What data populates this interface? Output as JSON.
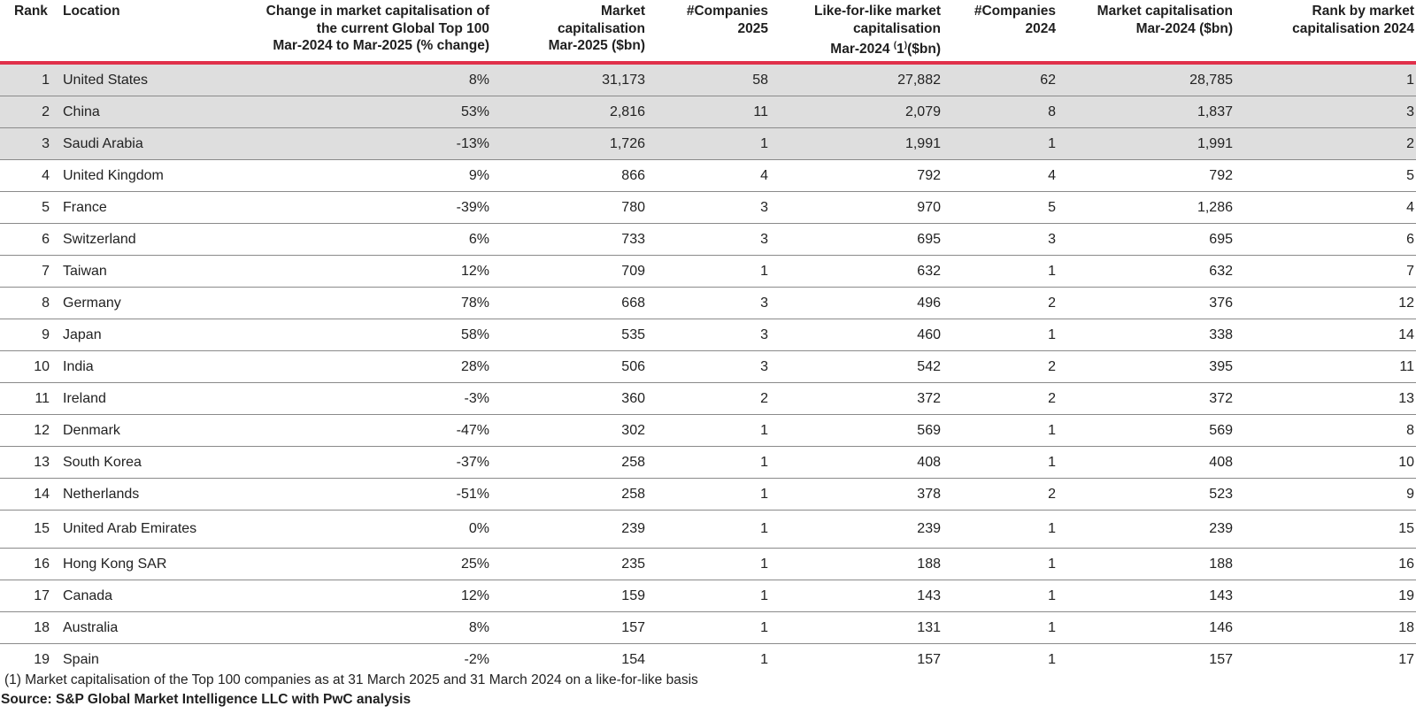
{
  "headers": {
    "rank": "Rank",
    "location": "Location",
    "change": [
      "Change in market capitalisation of",
      "the current Global Top 100",
      "Mar-2024 to Mar-2025 (% change)"
    ],
    "mc2025": [
      "Market",
      "capitalisation",
      "Mar-2025 ($bn)"
    ],
    "companies2025": [
      "#Companies",
      "2025"
    ],
    "lfl": [
      "Like-for-like market",
      "capitalisation"
    ],
    "lfl_line3_prefix": "Mar-2024 ",
    "lfl_sup": "(",
    "lfl_line3_mid": "1",
    "lfl_sup2": ")",
    "lfl_line3_suffix": "($bn)",
    "companies2024": [
      "#Companies",
      "2024"
    ],
    "mc2024": [
      "Market capitalisation",
      "Mar-2024 ($bn)"
    ],
    "rank2024": [
      "Rank by market",
      "capitalisation 2024"
    ]
  },
  "rows": [
    {
      "rank": "1",
      "location": "United States",
      "change": "8%",
      "mc2025": "31,173",
      "c2025": "58",
      "lfl": "27,882",
      "c2024": "62",
      "mc2024": "28,785",
      "rank2024": "1"
    },
    {
      "rank": "2",
      "location": "China",
      "change": "53%",
      "mc2025": "2,816",
      "c2025": "11",
      "lfl": "2,079",
      "c2024": "8",
      "mc2024": "1,837",
      "rank2024": "3"
    },
    {
      "rank": "3",
      "location": "Saudi Arabia",
      "change": "-13%",
      "mc2025": "1,726",
      "c2025": "1",
      "lfl": "1,991",
      "c2024": "1",
      "mc2024": "1,991",
      "rank2024": "2"
    },
    {
      "rank": "4",
      "location": "United Kingdom",
      "change": "9%",
      "mc2025": "866",
      "c2025": "4",
      "lfl": "792",
      "c2024": "4",
      "mc2024": "792",
      "rank2024": "5"
    },
    {
      "rank": "5",
      "location": "France",
      "change": "-39%",
      "mc2025": "780",
      "c2025": "3",
      "lfl": "970",
      "c2024": "5",
      "mc2024": "1,286",
      "rank2024": "4"
    },
    {
      "rank": "6",
      "location": "Switzerland",
      "change": "6%",
      "mc2025": "733",
      "c2025": "3",
      "lfl": "695",
      "c2024": "3",
      "mc2024": "695",
      "rank2024": "6"
    },
    {
      "rank": "7",
      "location": "Taiwan",
      "change": "12%",
      "mc2025": "709",
      "c2025": "1",
      "lfl": "632",
      "c2024": "1",
      "mc2024": "632",
      "rank2024": "7"
    },
    {
      "rank": "8",
      "location": "Germany",
      "change": "78%",
      "mc2025": "668",
      "c2025": "3",
      "lfl": "496",
      "c2024": "2",
      "mc2024": "376",
      "rank2024": "12"
    },
    {
      "rank": "9",
      "location": "Japan",
      "change": "58%",
      "mc2025": "535",
      "c2025": "3",
      "lfl": "460",
      "c2024": "1",
      "mc2024": "338",
      "rank2024": "14"
    },
    {
      "rank": "10",
      "location": "India",
      "change": "28%",
      "mc2025": "506",
      "c2025": "3",
      "lfl": "542",
      "c2024": "2",
      "mc2024": "395",
      "rank2024": "11"
    },
    {
      "rank": "11",
      "location": "Ireland",
      "change": "-3%",
      "mc2025": "360",
      "c2025": "2",
      "lfl": "372",
      "c2024": "2",
      "mc2024": "372",
      "rank2024": "13"
    },
    {
      "rank": "12",
      "location": "Denmark",
      "change": "-47%",
      "mc2025": "302",
      "c2025": "1",
      "lfl": "569",
      "c2024": "1",
      "mc2024": "569",
      "rank2024": "8"
    },
    {
      "rank": "13",
      "location": "South Korea",
      "change": "-37%",
      "mc2025": "258",
      "c2025": "1",
      "lfl": "408",
      "c2024": "1",
      "mc2024": "408",
      "rank2024": "10"
    },
    {
      "rank": "14",
      "location": "Netherlands",
      "change": "-51%",
      "mc2025": "258",
      "c2025": "1",
      "lfl": "378",
      "c2024": "2",
      "mc2024": "523",
      "rank2024": "9"
    },
    {
      "rank": "15",
      "location": "United Arab Emirates",
      "change": "0%",
      "mc2025": "239",
      "c2025": "1",
      "lfl": "239",
      "c2024": "1",
      "mc2024": "239",
      "rank2024": "15"
    },
    {
      "rank": "16",
      "location": "Hong Kong SAR",
      "change": "25%",
      "mc2025": "235",
      "c2025": "1",
      "lfl": "188",
      "c2024": "1",
      "mc2024": "188",
      "rank2024": "16"
    },
    {
      "rank": "17",
      "location": "Canada",
      "change": "12%",
      "mc2025": "159",
      "c2025": "1",
      "lfl": "143",
      "c2024": "1",
      "mc2024": "143",
      "rank2024": "19"
    },
    {
      "rank": "18",
      "location": "Australia",
      "change": "8%",
      "mc2025": "157",
      "c2025": "1",
      "lfl": "131",
      "c2024": "1",
      "mc2024": "146",
      "rank2024": "18"
    },
    {
      "rank": "19",
      "location": "Spain",
      "change": "-2%",
      "mc2025": "154",
      "c2025": "1",
      "lfl": "157",
      "c2024": "1",
      "mc2024": "157",
      "rank2024": "17"
    }
  ],
  "highlighted_rows": [
    "1",
    "2",
    "3"
  ],
  "footnote": "(1) Market capitalisation of the Top 100 companies as at 31 March 2025 and 31 March 2024 on a like-for-like basis",
  "source": "Source: S&P Global Market Intelligence LLC with PwC analysis",
  "colors": {
    "accent_rule": "#e0304a",
    "highlight_row": "#dedede"
  }
}
